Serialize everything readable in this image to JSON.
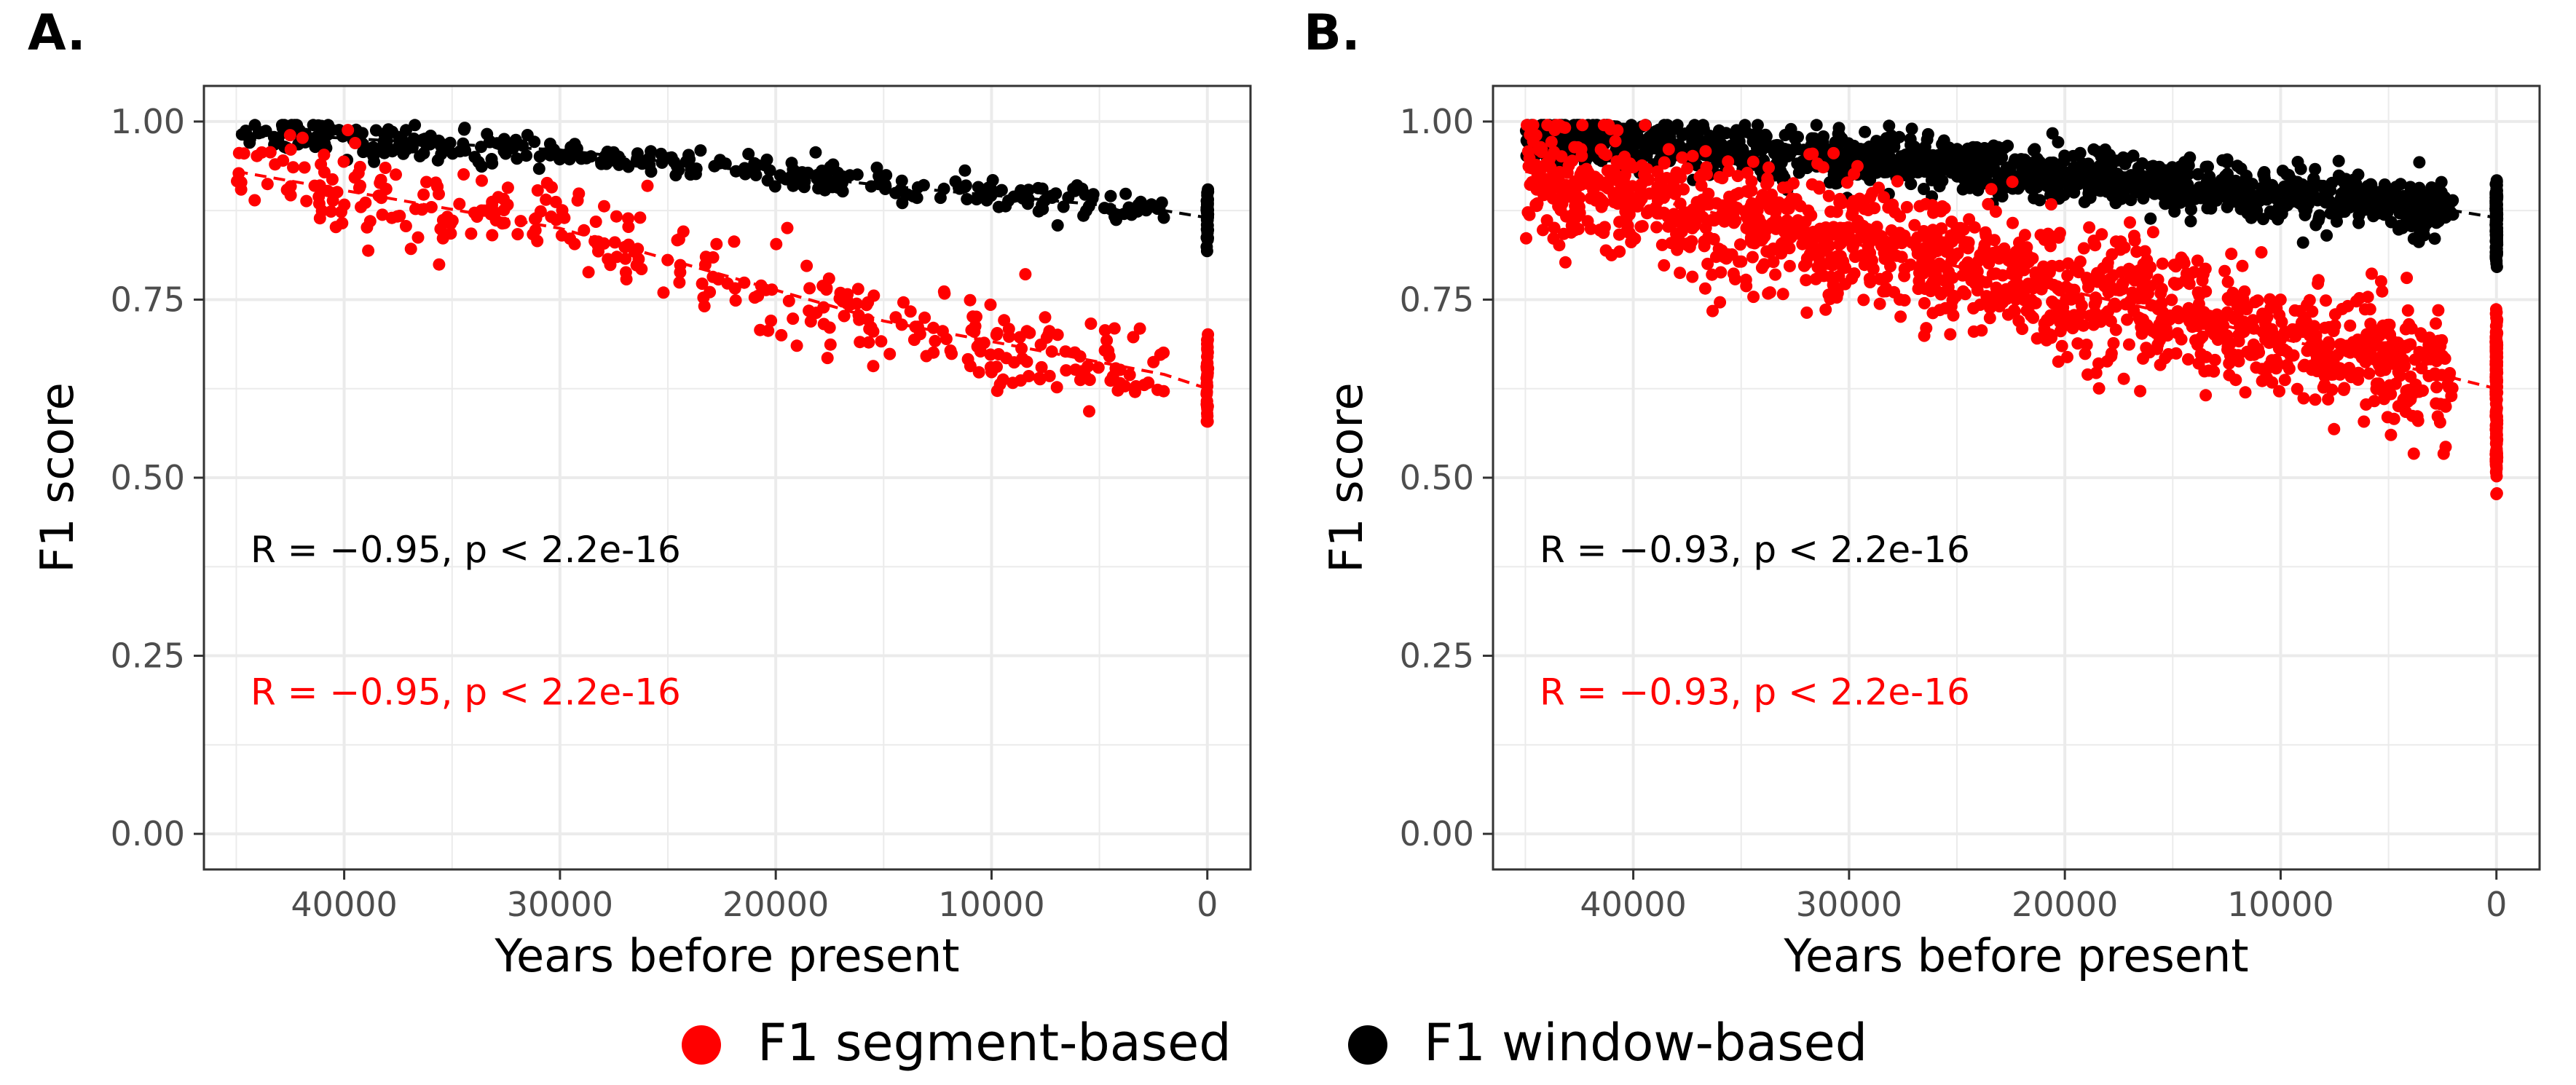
{
  "colors": {
    "segment": "#ff0000",
    "window": "#000000",
    "grid": "#ebebeb",
    "axis_text": "#4d4d4d"
  },
  "legend": {
    "position": "bottom",
    "items": [
      {
        "label": "F1 segment-based",
        "color": "#ff0000"
      },
      {
        "label": "F1 window-based",
        "color": "#000000"
      }
    ]
  },
  "chart_data": [
    {
      "panel": "A.",
      "type": "scatter",
      "xlabel": "Years before present",
      "ylabel": "F1 score",
      "xlim": [
        46500,
        -2000
      ],
      "ylim": [
        -0.05,
        1.05
      ],
      "x_reversed": true,
      "x_ticks": [
        40000,
        30000,
        20000,
        10000,
        0
      ],
      "x_tick_labels": [
        "40000",
        "30000",
        "20000",
        "10000",
        "0"
      ],
      "y_ticks": [
        0.0,
        0.25,
        0.5,
        0.75,
        1.0
      ],
      "y_tick_labels": [
        "0.00",
        "0.25",
        "0.50",
        "0.75",
        "1.00"
      ],
      "grid": true,
      "series": [
        {
          "name": "F1 window-based",
          "color": "#000000",
          "trend": {
            "x": [
              45000,
              30000,
              15000,
              2000,
              0
            ],
            "y": [
              0.985,
              0.96,
              0.91,
              0.875,
              0.865
            ]
          },
          "spread": 0.012,
          "n_points": 340,
          "present_range": [
            0.81,
            0.91
          ],
          "annotation": "R = −0.95, p < 2.2e-16"
        },
        {
          "name": "F1 segment-based",
          "color": "#ff0000",
          "trend": {
            "x": [
              45000,
              30000,
              15000,
              2000,
              0
            ],
            "y": [
              0.93,
              0.85,
              0.72,
              0.645,
              0.625
            ]
          },
          "spread": 0.032,
          "n_points": 340,
          "present_range": [
            0.53,
            0.71
          ],
          "annotation": "R = −0.95, p < 2.2e-16"
        }
      ]
    },
    {
      "panel": "B.",
      "type": "scatter",
      "xlabel": "Years before present",
      "ylabel": "F1 score",
      "xlim": [
        46500,
        -2000
      ],
      "ylim": [
        -0.05,
        1.05
      ],
      "x_reversed": true,
      "x_ticks": [
        40000,
        30000,
        20000,
        10000,
        0
      ],
      "x_tick_labels": [
        "40000",
        "30000",
        "20000",
        "10000",
        "0"
      ],
      "y_ticks": [
        0.0,
        0.25,
        0.5,
        0.75,
        1.0
      ],
      "y_tick_labels": [
        "0.00",
        "0.25",
        "0.50",
        "0.75",
        "1.00"
      ],
      "grid": true,
      "series": [
        {
          "name": "F1 window-based",
          "color": "#000000",
          "trend": {
            "x": [
              45000,
              30000,
              15000,
              2000,
              0
            ],
            "y": [
              0.98,
              0.95,
              0.91,
              0.875,
              0.865
            ]
          },
          "spread": 0.018,
          "n_points": 1400,
          "present_range": [
            0.78,
            0.92
          ],
          "annotation": "R = −0.93, p < 2.2e-16"
        },
        {
          "name": "F1 segment-based",
          "color": "#ff0000",
          "trend": {
            "x": [
              45000,
              30000,
              15000,
              2000,
              0
            ],
            "y": [
              0.93,
              0.83,
              0.73,
              0.64,
              0.625
            ]
          },
          "spread": 0.045,
          "n_points": 1400,
          "present_range": [
            0.44,
            0.75
          ],
          "annotation": "R = −0.93, p < 2.2e-16"
        }
      ]
    }
  ]
}
